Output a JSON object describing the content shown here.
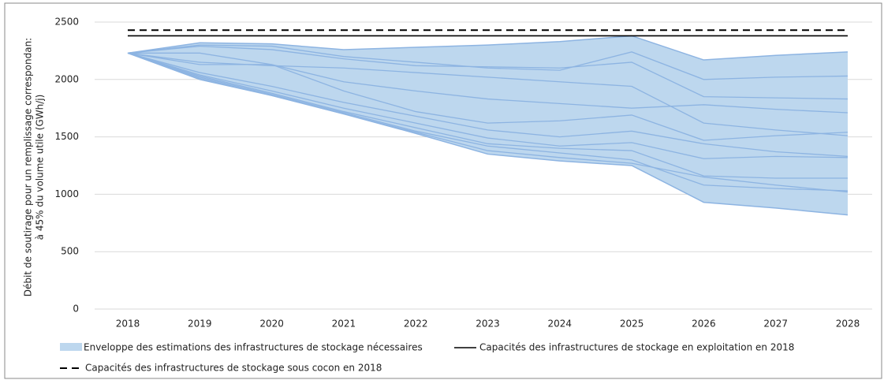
{
  "chart_data": {
    "type": "area",
    "y_label": [
      "Débit de soutirage pour un remplissage correspondan:",
      "à 45% du volume utile (GWh/j)"
    ],
    "categories": [
      "2018",
      "2019",
      "2020",
      "2021",
      "2022",
      "2023",
      "2024",
      "2025",
      "2026",
      "2027",
      "2028"
    ],
    "ylim": [
      0,
      2500
    ],
    "yticks": [
      0,
      500,
      1000,
      1500,
      2000,
      2500
    ],
    "grid": true,
    "legend": "bottom",
    "envelope": {
      "name": "Enveloppe des estimations des infrastructures de stockage nécessaires",
      "color": "#bdd7ee",
      "edge_color": "#8db4e2",
      "high": [
        2230,
        2320,
        2310,
        2260,
        2280,
        2300,
        2330,
        2380,
        2170,
        2210,
        2240
      ],
      "low": [
        2230,
        2000,
        1860,
        1700,
        1530,
        1350,
        1290,
        1250,
        930,
        880,
        820
      ]
    },
    "scenarios": [
      {
        "color": "#8db4e2",
        "values": [
          2230,
          2300,
          2290,
          2200,
          2150,
          2100,
          2080,
          2240,
          2000,
          2020,
          2030
        ]
      },
      {
        "color": "#8db4e2",
        "values": [
          2230,
          2290,
          2260,
          2180,
          2120,
          2110,
          2100,
          2150,
          1850,
          1840,
          1830
        ]
      },
      {
        "color": "#8db4e2",
        "values": [
          2230,
          2230,
          2130,
          1980,
          1900,
          1830,
          1790,
          1750,
          1780,
          1740,
          1710
        ]
      },
      {
        "color": "#8db4e2",
        "values": [
          2230,
          2150,
          2120,
          2100,
          2060,
          2020,
          1980,
          1940,
          1620,
          1560,
          1510
        ]
      },
      {
        "color": "#8db4e2",
        "values": [
          2230,
          2130,
          2130,
          1900,
          1720,
          1620,
          1640,
          1690,
          1470,
          1510,
          1540
        ]
      },
      {
        "color": "#8db4e2",
        "values": [
          2230,
          2060,
          1940,
          1800,
          1680,
          1560,
          1500,
          1550,
          1440,
          1370,
          1330
        ]
      },
      {
        "color": "#8db4e2",
        "values": [
          2230,
          2040,
          1900,
          1750,
          1620,
          1490,
          1420,
          1450,
          1310,
          1330,
          1320
        ]
      },
      {
        "color": "#8db4e2",
        "values": [
          2230,
          2030,
          1880,
          1720,
          1580,
          1440,
          1400,
          1380,
          1160,
          1140,
          1140
        ]
      },
      {
        "color": "#8db4e2",
        "values": [
          2230,
          2020,
          1870,
          1710,
          1550,
          1420,
          1360,
          1300,
          1080,
          1050,
          1030
        ]
      },
      {
        "color": "#8db4e2",
        "values": [
          2230,
          2010,
          1860,
          1700,
          1540,
          1380,
          1320,
          1270,
          1150,
          1080,
          1020
        ]
      }
    ],
    "references": [
      {
        "name": "Capacités des infrastructures de stockage en exploitation en 2018",
        "color": "#000000",
        "value": 2380,
        "dashed": false
      },
      {
        "name": "Capacités des infrastructures de stockage sous cocon en 2018",
        "color": "#000000",
        "value": 2430,
        "dashed": true
      }
    ]
  }
}
